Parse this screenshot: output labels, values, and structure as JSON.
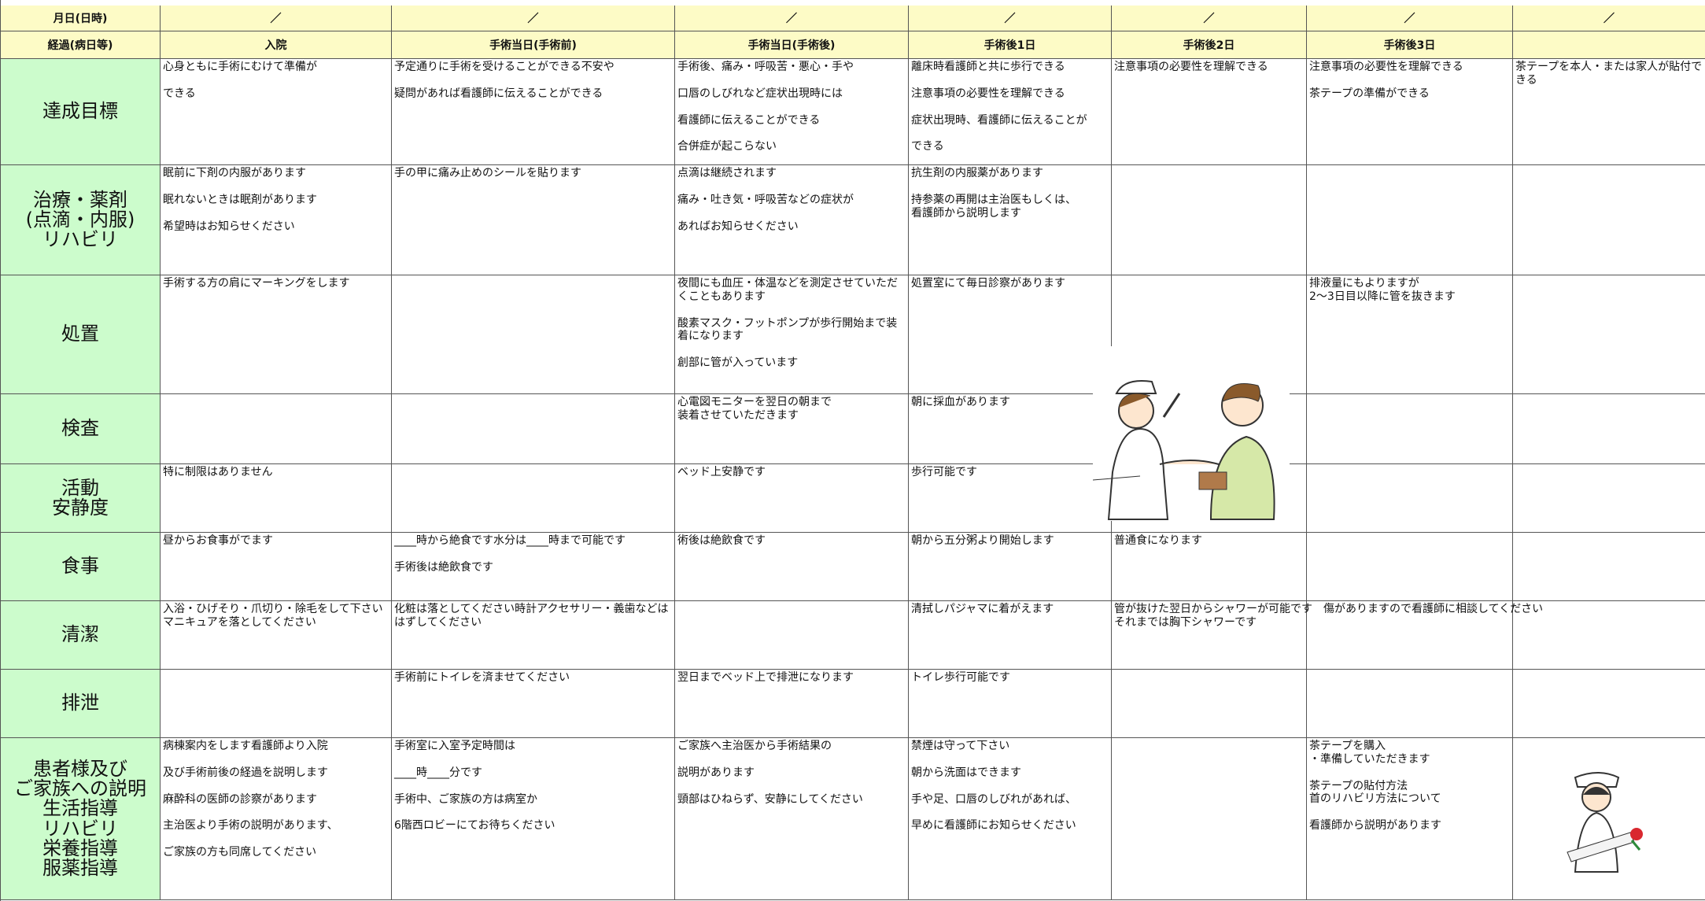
{
  "header": {
    "row_labels": [
      "月日(日時)",
      "経過(病日等)"
    ],
    "dates": [
      "／",
      "／",
      "／",
      "／",
      "／",
      "／",
      "／"
    ],
    "stages": [
      "入院",
      "手術当日(手術前)",
      "手術当日(手術後)",
      "手術後1日",
      "手術後2日",
      "手術後3日",
      null
    ]
  },
  "rows": [
    {
      "label": [
        "達成目標"
      ],
      "cells": [
        [
          "心身ともに手術にむけて準備が",
          "できる"
        ],
        [
          "予定通りに手術を受けることができる不安や",
          "疑問があれば看護師に伝えることができる"
        ],
        [
          "手術後、痛み・呼吸苦・悪心・手や",
          "口唇のしびれなど症状出現時には",
          "看護師に伝えることができる",
          "合併症が起こらない"
        ],
        [
          "離床時看護師と共に歩行できる",
          "注意事項の必要性を理解できる",
          "症状出現時、看護師に伝えることが",
          "できる"
        ],
        [
          "注意事項の必要性を理解できる"
        ],
        [
          "注意事項の必要性を理解できる",
          "茶テープの準備ができる"
        ],
        [
          "茶テープを本人・または家人が貼付できる"
        ]
      ]
    },
    {
      "label": [
        "治療・薬剤",
        "(点滴・内服)",
        "リハビリ"
      ],
      "cells": [
        [
          "眠前に下剤の内服があります",
          "眠れないときは眠剤があります",
          "希望時はお知らせください"
        ],
        [
          "手の甲に痛み止めのシールを貼ります"
        ],
        [
          "点滴は継続されます",
          "痛み・吐き気・呼吸苦などの症状が",
          "あればお知らせください"
        ],
        [
          "抗生剤の内服薬があります",
          "持参薬の再開は主治医もしくは、\n看護師から説明します"
        ],
        [],
        [],
        []
      ]
    },
    {
      "label": [
        "処置"
      ],
      "cells": [
        [
          "手術する方の肩にマーキングをします"
        ],
        [],
        [
          "夜間にも血圧・体温などを測定させていただくこともあります",
          "酸素マスク・フットポンプが歩行開始まで装着になります",
          "創部に管が入っています"
        ],
        [
          "処置室にて毎日診察があります"
        ],
        [],
        [
          "排液量にもよりますが\n2～3日目以降に管を抜きます"
        ],
        []
      ]
    },
    {
      "label": [
        "検査"
      ],
      "cells": [
        [],
        [],
        [
          "心電図モニターを翌日の朝まで\n装着させていただきます"
        ],
        [
          "朝に採血があります"
        ],
        [],
        [],
        []
      ]
    },
    {
      "label": [
        "活動",
        "安静度"
      ],
      "cells": [
        [
          "特に制限はありません"
        ],
        [],
        [
          "ベッド上安静です"
        ],
        [
          "歩行可能です"
        ],
        [],
        [],
        []
      ]
    },
    {
      "label": [
        "食事"
      ],
      "cells": [
        [
          "昼からお食事がでます"
        ],
        [
          "____時から絶食です水分は____時まで可能です",
          "手術後は絶飲食です"
        ],
        [
          "術後は絶飲食です"
        ],
        [
          "朝から五分粥より開始します"
        ],
        [
          "普通食になります"
        ],
        [],
        []
      ]
    },
    {
      "label": [
        "清潔"
      ],
      "cells": [
        [
          "入浴・ひげそり・爪切り・除毛をして下さい\nマニキュアを落としてください"
        ],
        [
          "化粧は落としてください時計アクセサリー・義歯などははずしてください"
        ],
        [],
        [
          "清拭しパジャマに着がえます"
        ],
        [
          "管が抜けた翌日からシャワーが可能です　傷がありますので看護師に相談してください\nそれまでは胸下シャワーです"
        ],
        [],
        []
      ]
    },
    {
      "label": [
        "排泄"
      ],
      "cells": [
        [],
        [
          "手術前にトイレを済ませてください"
        ],
        [
          "翌日までベッド上で排泄になります"
        ],
        [
          "トイレ歩行可能です"
        ],
        [],
        [],
        []
      ]
    },
    {
      "label": [
        "患者様及び",
        "ご家族への説明",
        "生活指導",
        "リハビリ",
        "栄養指導",
        "服薬指導"
      ],
      "cells": [
        [
          "病棟案内をします看護師より入院",
          "及び手術前後の経過を説明します",
          "麻酔科の医師の診察があります",
          "主治医より手術の説明があります、",
          "ご家族の方も同席してください"
        ],
        [
          "手術室に入室予定時間は",
          "____時____分です",
          "手術中、ご家族の方は病室か",
          "6階西ロビーにてお待ちください"
        ],
        [
          "ご家族へ主治医から手術結果の",
          "説明があります",
          "頸部はひねらず、安静にしてください"
        ],
        [
          "禁煙は守って下さい",
          "朝から洗面はできます",
          "手や足、口唇のしびれがあれば、",
          "早めに看護師にお知らせください"
        ],
        [],
        [
          "茶テープを購入\n・準備していただきます",
          "茶テープの貼付方法\n首のリハビリ方法について",
          "看護師から説明があります"
        ],
        []
      ]
    }
  ]
}
